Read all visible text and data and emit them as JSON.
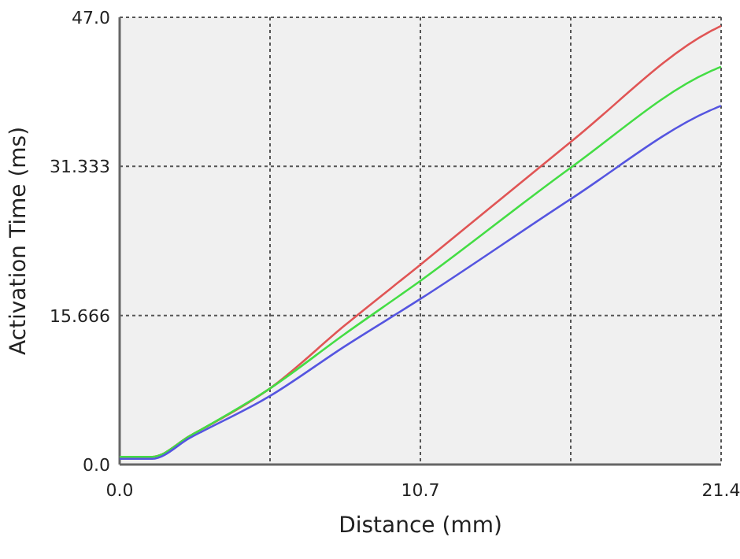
{
  "chart_data": {
    "type": "line",
    "xlabel": "Distance (mm)",
    "ylabel": "Activation Time (ms)",
    "xlim": [
      0,
      21.4
    ],
    "xticks": [
      {
        "value": 0,
        "label": "0.0"
      },
      10.7,
      {
        "value": 21.4,
        "label": "21.4"
      }
    ],
    "ylim": [
      0,
      47
    ],
    "yticks": [
      {
        "value": 0,
        "label": "0.0"
      },
      15.666,
      31.333,
      {
        "value": 47,
        "label": "47.0"
      }
    ],
    "grid": true,
    "marker": "none",
    "line_style": "solid",
    "x": [
      0,
      1.15,
      2.5,
      5.35,
      8,
      10.7,
      16.05,
      21,
      21.4
    ],
    "series": [
      {
        "color": "#e05555",
        "values": [
          0.8,
          0.8,
          3.0,
          8.0,
          14.6,
          21.0,
          33.9,
          45.5,
          46.1
        ]
      },
      {
        "color": "#44dd44",
        "values": [
          0.8,
          0.8,
          3.0,
          8.0,
          13.7,
          19.3,
          31.2,
          41.3,
          41.8
        ]
      },
      {
        "color": "#5555e0",
        "values": [
          0.6,
          0.6,
          2.8,
          7.2,
          12.4,
          17.4,
          27.9,
          37.2,
          37.7
        ]
      }
    ]
  }
}
